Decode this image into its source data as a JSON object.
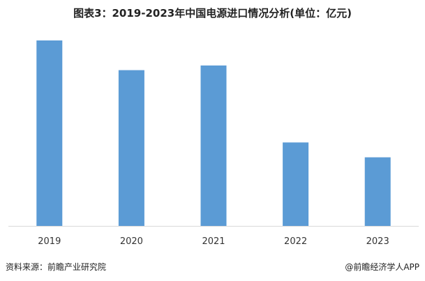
{
  "title": "图表3：2019-2023年中国电源进口情况分析(单位：亿元)",
  "chart_data": {
    "type": "bar",
    "categories": [
      "2019",
      "2020",
      "2021",
      "2022",
      "2023"
    ],
    "values": [
      100,
      84,
      86.5,
      45,
      37
    ],
    "ylim": [
      0,
      100
    ],
    "grid": false,
    "bar_color": "#5b9bd5",
    "axis_color": "#d9d9d9"
  },
  "footer": {
    "source": "资料来源：前瞻产业研究院",
    "brand": "@前瞻经济学人APP"
  }
}
